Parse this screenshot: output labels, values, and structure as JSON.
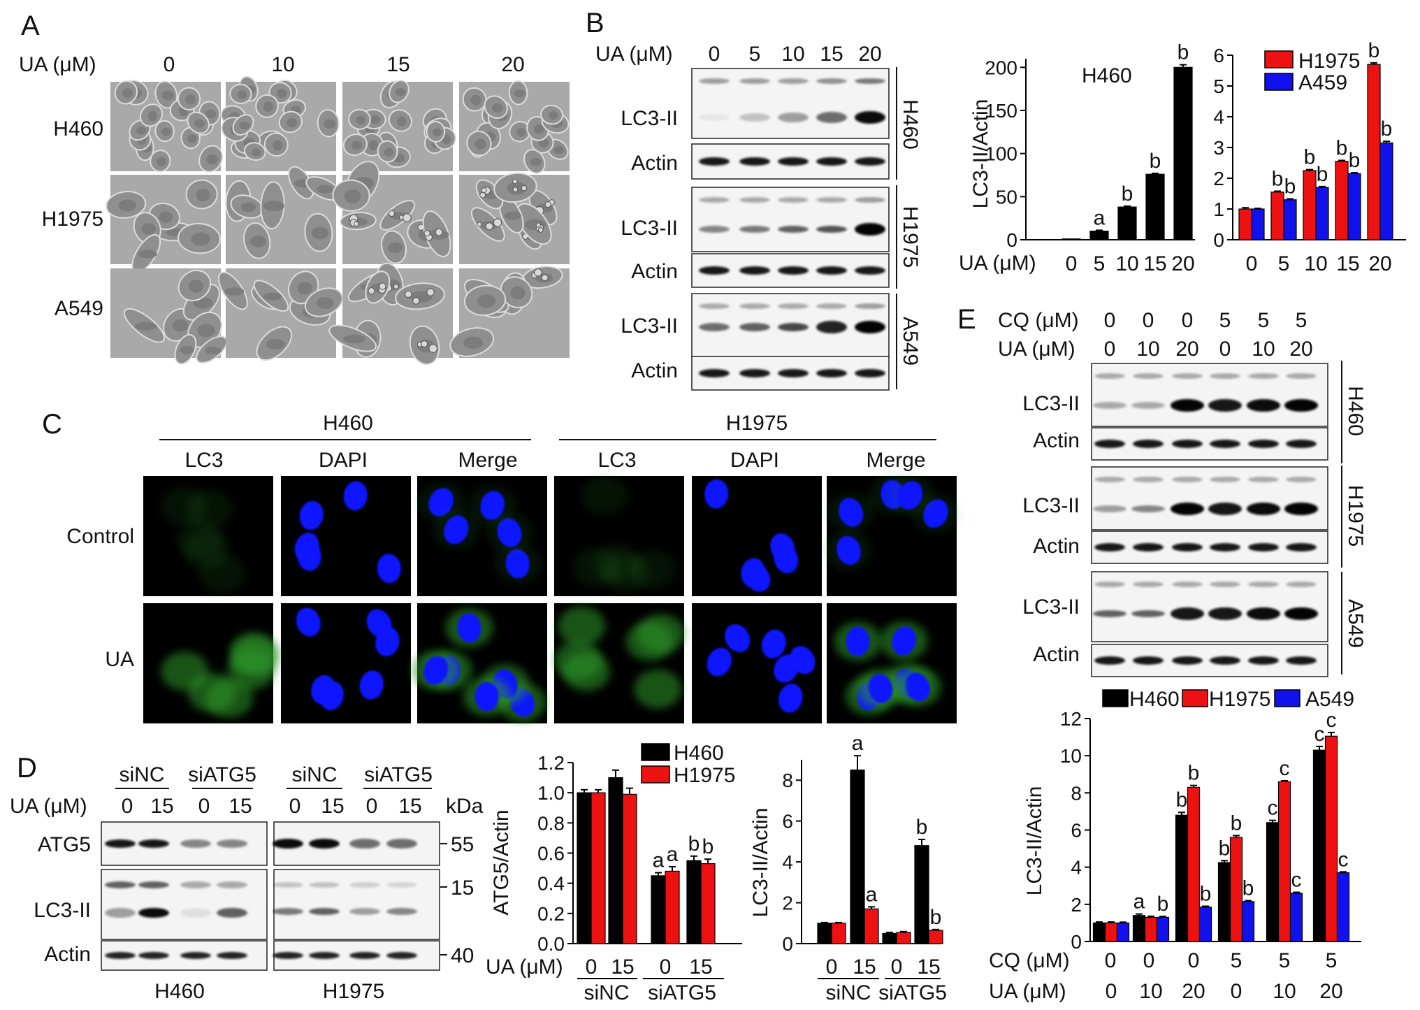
{
  "panels": {
    "a": "A",
    "b": "B",
    "c": "C",
    "d": "D",
    "e": "E"
  },
  "ua_label": "UA (μM)",
  "cq_label": "CQ (μM)",
  "kda_label": "kDa",
  "panel_a": {
    "doses": [
      "0",
      "10",
      "15",
      "20"
    ],
    "cell_lines": [
      "H460",
      "H1975",
      "A549"
    ]
  },
  "panel_b": {
    "doses": [
      "0",
      "5",
      "10",
      "15",
      "20"
    ],
    "cell_lines": [
      "H460",
      "H1975",
      "A549"
    ],
    "bands": [
      "LC3-II",
      "Actin"
    ]
  },
  "panel_c": {
    "groups": [
      "H460",
      "H1975"
    ],
    "channels": [
      "LC3",
      "DAPI",
      "Merge"
    ],
    "conditions": [
      "Control",
      "UA"
    ]
  },
  "panel_d": {
    "sirnas": [
      "siNC",
      "siATG5"
    ],
    "doses": [
      "0",
      "15"
    ],
    "cell_lines": [
      "H460",
      "H1975"
    ],
    "bands": [
      "ATG5",
      "LC3-II",
      "Actin"
    ],
    "markers": [
      "55",
      "15",
      "40"
    ]
  },
  "panel_e": {
    "cq": [
      "0",
      "0",
      "0",
      "5",
      "5",
      "5"
    ],
    "ua": [
      "0",
      "10",
      "20",
      "0",
      "10",
      "20"
    ],
    "cell_lines": [
      "H460",
      "H1975",
      "A549"
    ],
    "bands": [
      "LC3-II",
      "Actin"
    ]
  },
  "colors": {
    "H460": "#000000",
    "H1975": "#ee1111",
    "A459": "#1111ee",
    "A549": "#1111ee",
    "dapi": "#0a14ff",
    "lc3": "#2f9a2a"
  },
  "chart_data": [
    {
      "id": "b1",
      "type": "bar",
      "annotation": "H460",
      "ylabel": "LC3-II/Actin",
      "xlabel": "UA (μM)",
      "categories": [
        "0",
        "5",
        "10",
        "15",
        "20"
      ],
      "ylim": [
        0,
        210
      ],
      "yticks": [
        0,
        50,
        100,
        150,
        200
      ],
      "series": [
        {
          "key": "H460",
          "values": [
            1,
            10,
            38,
            76,
            200
          ],
          "errors": [
            0,
            1,
            1,
            1,
            3
          ],
          "labels": [
            "",
            "a",
            "b",
            "b",
            "b"
          ]
        }
      ]
    },
    {
      "id": "b2",
      "type": "bar",
      "categories": [
        "0",
        "5",
        "10",
        "15",
        "20"
      ],
      "ylim": [
        0,
        6
      ],
      "yticks": [
        0,
        1,
        2,
        3,
        4,
        5,
        6
      ],
      "legend": [
        "H1975",
        "A459"
      ],
      "series": [
        {
          "name": "H1975",
          "values": [
            1.0,
            1.55,
            2.25,
            2.55,
            5.7
          ],
          "errors": [
            0.04,
            0.03,
            0.03,
            0.03,
            0.05
          ],
          "labels": [
            "",
            "b",
            "b",
            "b",
            "b"
          ]
        },
        {
          "name": "A459",
          "values": [
            1.0,
            1.3,
            1.7,
            2.15,
            3.15
          ],
          "errors": [
            0.02,
            0.03,
            0.03,
            0.03,
            0.05
          ],
          "labels": [
            "",
            "b",
            "b",
            "b",
            "b"
          ]
        }
      ]
    },
    {
      "id": "d1",
      "type": "bar",
      "ylabel": "ATG5/Actin",
      "xlabel": "UA (μM)",
      "categories": [
        "0",
        "15",
        "0",
        "15"
      ],
      "groups": [
        "siNC",
        "siATG5"
      ],
      "ylim": [
        0,
        1.2
      ],
      "yticks": [
        0.0,
        0.2,
        0.4,
        0.6,
        0.8,
        1.0,
        1.2
      ],
      "legend": [
        "H460",
        "H1975"
      ],
      "series": [
        {
          "name": "H460",
          "values": [
            1.0,
            1.1,
            0.45,
            0.55
          ],
          "errors": [
            0.02,
            0.05,
            0.02,
            0.03
          ],
          "labels": [
            "",
            "",
            "a",
            "b"
          ]
        },
        {
          "name": "H1975",
          "values": [
            1.0,
            0.99,
            0.48,
            0.53
          ],
          "errors": [
            0.02,
            0.04,
            0.03,
            0.03
          ],
          "labels": [
            "",
            "",
            "a",
            "b"
          ]
        }
      ]
    },
    {
      "id": "d2",
      "type": "bar",
      "ylabel": "LC3-II/Actin",
      "categories": [
        "0",
        "15",
        "0",
        "15"
      ],
      "groups": [
        "siNC",
        "siATG5"
      ],
      "ylim": [
        0,
        9
      ],
      "yticks": [
        0,
        2,
        4,
        6,
        8
      ],
      "series": [
        {
          "key": "H460",
          "values": [
            1.0,
            8.5,
            0.5,
            4.8
          ],
          "errors": [
            0.03,
            0.7,
            0.05,
            0.3
          ],
          "labels": [
            "",
            "a",
            "",
            "b"
          ]
        },
        {
          "key": "H1975",
          "values": [
            1.0,
            1.7,
            0.55,
            0.65
          ],
          "errors": [
            0.03,
            0.1,
            0.04,
            0.04
          ],
          "labels": [
            "",
            "a",
            "",
            "b"
          ]
        }
      ]
    },
    {
      "id": "e",
      "type": "bar",
      "ylabel": "LC3-II/Actin",
      "categories": [
        "0",
        "10",
        "20",
        "0",
        "10",
        "20"
      ],
      "ylim": [
        0,
        12
      ],
      "yticks": [
        0,
        2,
        4,
        6,
        8,
        10,
        12
      ],
      "legend": [
        "H460",
        "H1975",
        "A549"
      ],
      "series": [
        {
          "name": "H460",
          "values": [
            1.0,
            1.4,
            6.8,
            4.25,
            6.4,
            10.3
          ],
          "errors": [
            0.05,
            0.08,
            0.15,
            0.1,
            0.12,
            0.2
          ],
          "labels": [
            "",
            "a",
            "b",
            "b",
            "c",
            "c"
          ]
        },
        {
          "name": "H1975",
          "values": [
            1.0,
            1.3,
            8.3,
            5.6,
            8.6,
            11.05
          ],
          "errors": [
            0.05,
            0.06,
            0.1,
            0.1,
            0.05,
            0.2
          ],
          "labels": [
            "",
            "",
            "b",
            "b",
            "c",
            "c"
          ]
        },
        {
          "name": "A549",
          "values": [
            1.0,
            1.3,
            1.85,
            2.15,
            2.6,
            3.7
          ],
          "errors": [
            0.04,
            0.05,
            0.05,
            0.05,
            0.05,
            0.05
          ],
          "labels": [
            "",
            "b",
            "b",
            "b",
            "c",
            "c"
          ]
        }
      ]
    }
  ]
}
